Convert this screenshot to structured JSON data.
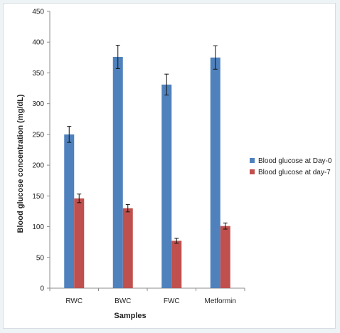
{
  "chart_data": {
    "type": "bar",
    "title": "",
    "xlabel": "Samples",
    "ylabel": "Blood glucose concentration (mg/dL)",
    "ylim": [
      0,
      450
    ],
    "yticks": [
      0,
      50,
      100,
      150,
      200,
      250,
      300,
      350,
      400,
      450
    ],
    "categories": [
      "RWC",
      "BWC",
      "FWC",
      "Metformin"
    ],
    "series": [
      {
        "name": "Blood glucose at Day-0",
        "color": "#4f81bd",
        "values": [
          250,
          376,
          331,
          375
        ],
        "errors": [
          13,
          19,
          17,
          19
        ]
      },
      {
        "name": "Blood glucose at day-7",
        "color": "#c0504d",
        "values": [
          146,
          130,
          77,
          101
        ],
        "errors": [
          7,
          6,
          4,
          5
        ]
      }
    ],
    "legend_position": "right",
    "grid": false
  }
}
